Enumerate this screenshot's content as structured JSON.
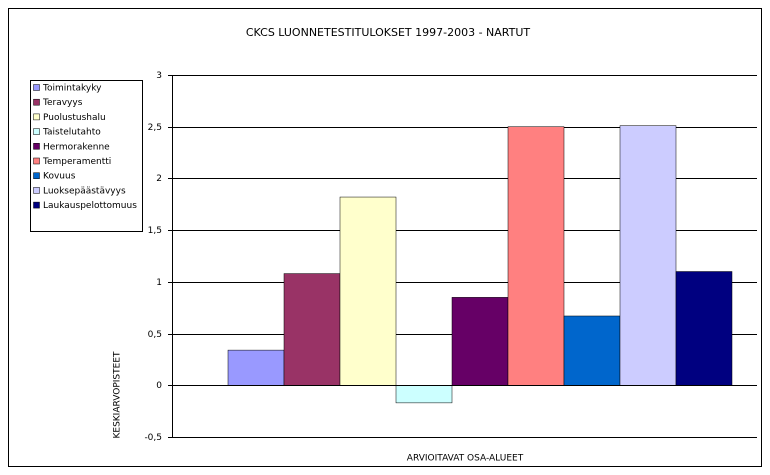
{
  "chart_data": {
    "type": "bar",
    "title": "CKCS LUONNETESTITULOKSET 1997-2003 - NARTUT",
    "x_label": "ARVIOITAVAT OSA-ALUEET",
    "y_label": "KESKIARVOPISTEET",
    "categories": [
      null
    ],
    "series": [
      {
        "name": "Toimintakyky",
        "color": "#9999ff",
        "values": [
          0.34
        ]
      },
      {
        "name": "Teravyys",
        "color": "#993366",
        "values": [
          1.08
        ]
      },
      {
        "name": "Puolustushalu",
        "color": "#ffffcc",
        "values": [
          1.82
        ]
      },
      {
        "name": "Taistelutahto",
        "color": "#ccffff",
        "values": [
          -0.17
        ]
      },
      {
        "name": "Hermorakenne",
        "color": "#660066",
        "values": [
          0.85
        ]
      },
      {
        "name": "Temperamentti",
        "color": "#ff8080",
        "values": [
          2.5
        ]
      },
      {
        "name": "Kovuus",
        "color": "#0066cc",
        "values": [
          0.67
        ]
      },
      {
        "name": "Luoksepäästävyys",
        "color": "#ccccff",
        "values": [
          2.51
        ]
      },
      {
        "name": "Laukauspelottomuus",
        "color": "#000080",
        "values": [
          1.1
        ]
      }
    ],
    "ylim": [
      -0.5,
      3
    ],
    "yticks": [
      {
        "value": -0.5,
        "label": "-0,5"
      },
      0,
      {
        "value": 0.5,
        "label": "0,5"
      },
      1,
      {
        "value": 1.5,
        "label": "1,5"
      },
      2,
      {
        "value": 2.5,
        "label": "2,5"
      },
      3
    ],
    "grid": true,
    "legend": "left"
  }
}
